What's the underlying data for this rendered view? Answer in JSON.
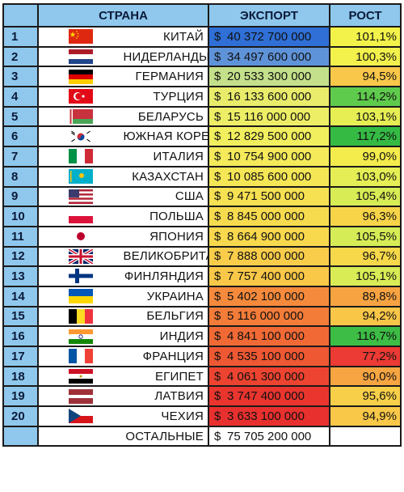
{
  "headers": {
    "country": "СТРАНА",
    "export": "ЭКСПОРТ",
    "growth": "РОСТ"
  },
  "currency": "$",
  "rows": [
    {
      "rank": "1",
      "flag": "china-flag",
      "country": "КИТАЙ",
      "export": "40 372 700 000",
      "growth": "101,1%",
      "export_color": "#2f6fd6",
      "growth_color": "#f2f24a"
    },
    {
      "rank": "2",
      "flag": "netherlands-flag",
      "country": "НИДЕРЛАНДЫ",
      "export": "34 497 600 000",
      "growth": "100,3%",
      "export_color": "#5f93d9",
      "growth_color": "#f3f14c"
    },
    {
      "rank": "3",
      "flag": "germany-flag",
      "country": "ГЕРМАНИЯ",
      "export": "20 533 300 000",
      "growth": "94,5%",
      "export_color": "#c4e08a",
      "growth_color": "#f9c84a"
    },
    {
      "rank": "4",
      "flag": "turkey-flag",
      "country": "ТУРЦИЯ",
      "export": "16 133 600 000",
      "growth": "114,2%",
      "export_color": "#e9ec6a",
      "growth_color": "#5fcb4d"
    },
    {
      "rank": "5",
      "flag": "belarus-flag",
      "country": "БЕЛАРУСЬ",
      "export": "15 116 000 000",
      "growth": "103,1%",
      "export_color": "#eeee66",
      "growth_color": "#e6ee54"
    },
    {
      "rank": "6",
      "flag": "south-korea-flag",
      "country": "ЮЖНАЯ КОРЕЯ",
      "export": "12 829 500 000",
      "growth": "117,2%",
      "export_color": "#f2ef5e",
      "growth_color": "#35bb44"
    },
    {
      "rank": "7",
      "flag": "italy-flag",
      "country": "ИТАЛИЯ",
      "export": "10 754 900 000",
      "growth": "99,0%",
      "export_color": "#f4ea5a",
      "growth_color": "#f4ec4c"
    },
    {
      "rank": "8",
      "flag": "kazakhstan-flag",
      "country": "КАЗАХСТАН",
      "export": "10 085 600 000",
      "growth": "103,0%",
      "export_color": "#f5e655",
      "growth_color": "#e5ee54"
    },
    {
      "rank": "9",
      "flag": "usa-flag",
      "country": "США",
      "export": "9 471 500 000",
      "growth": "105,4%",
      "export_color": "#f6e152",
      "growth_color": "#d8ec56"
    },
    {
      "rank": "10",
      "flag": "poland-flag",
      "country": "ПОЛЬША",
      "export": "8 845 000 000",
      "growth": "96,3%",
      "export_color": "#f7db4f",
      "growth_color": "#f8d449"
    },
    {
      "rank": "11",
      "flag": "japan-flag",
      "country": "ЯПОНИЯ",
      "export": "8 664 900 000",
      "growth": "105,5%",
      "export_color": "#f8d84d",
      "growth_color": "#d6ec56"
    },
    {
      "rank": "12",
      "flag": "uk-flag",
      "country": "ВЕЛИКОБРИТАНИЯ",
      "export": "7 888 000 000",
      "growth": "96,7%",
      "export_color": "#f9cd4a",
      "growth_color": "#f7d84a"
    },
    {
      "rank": "13",
      "flag": "finland-flag",
      "country": "ФИНЛЯНДИЯ",
      "export": "7 757 400 000",
      "growth": "105,1%",
      "export_color": "#f9c848",
      "growth_color": "#d9ec56"
    },
    {
      "rank": "14",
      "flag": "ukraine-flag",
      "country": "УКРАИНА",
      "export": "5 402 100 000",
      "growth": "89,8%",
      "export_color": "#f58a3c",
      "growth_color": "#f7a342"
    },
    {
      "rank": "15",
      "flag": "belgium-flag",
      "country": "БЕЛЬГИЯ",
      "export": "5 116 000 000",
      "growth": "94,2%",
      "export_color": "#f37c38",
      "growth_color": "#f9c648"
    },
    {
      "rank": "16",
      "flag": "india-flag",
      "country": "ИНДИЯ",
      "export": "4 841 100 000",
      "growth": "116,7%",
      "export_color": "#f16a35",
      "growth_color": "#3dbd45"
    },
    {
      "rank": "17",
      "flag": "france-flag",
      "country": "ФРАНЦИЯ",
      "export": "4 535 100 000",
      "growth": "77,2%",
      "export_color": "#ee5832",
      "growth_color": "#ec3a34"
    },
    {
      "rank": "18",
      "flag": "egypt-flag",
      "country": "ЕГИПЕТ",
      "export": "4 061 300 000",
      "growth": "90,0%",
      "export_color": "#ec4430",
      "growth_color": "#f7a542"
    },
    {
      "rank": "19",
      "flag": "latvia-flag",
      "country": "ЛАТВИЯ",
      "export": "3 747 400 000",
      "growth": "95,6%",
      "export_color": "#ea352f",
      "growth_color": "#f8cf49"
    },
    {
      "rank": "20",
      "flag": "czechia-flag",
      "country": "ЧЕХИЯ",
      "export": "3 633 100 000",
      "growth": "94,9%",
      "export_color": "#e8302e",
      "growth_color": "#f9c848"
    }
  ],
  "others": {
    "country": "ОСТАЛЬНЫЕ",
    "export": "75 705 200 000"
  },
  "colors": {
    "header_bg": "#8fc8ec",
    "border": "#1a1a1a"
  }
}
